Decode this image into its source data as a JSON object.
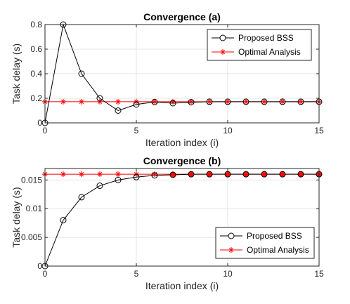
{
  "chart_data": [
    {
      "type": "line",
      "title": "Convergence (a)",
      "xlabel": "Iteration index (i)",
      "ylabel": "Task delay (s)",
      "xlim": [
        0,
        15
      ],
      "ylim": [
        0,
        0.8
      ],
      "xticks": [
        0,
        5,
        10,
        15
      ],
      "yticks": [
        0,
        0.2,
        0.4,
        0.6,
        0.8
      ],
      "xtick_labels": [
        "0",
        "5",
        "10",
        "15"
      ],
      "ytick_labels": [
        "0",
        "0.2",
        "0.4",
        "0.6",
        "0.8"
      ],
      "grid": true,
      "legend_position": "top-right",
      "x": [
        0,
        1,
        2,
        3,
        4,
        5,
        6,
        7,
        8,
        9,
        10,
        11,
        12,
        13,
        14,
        15
      ],
      "series": [
        {
          "name": "Proposed BSS",
          "color": "#000000",
          "marker": "circle",
          "values": [
            0,
            0.8,
            0.4,
            0.2,
            0.1,
            0.15,
            0.17,
            0.16,
            0.168,
            0.172,
            0.172,
            0.172,
            0.172,
            0.172,
            0.172,
            0.172
          ]
        },
        {
          "name": "Optimal Analysis",
          "color": "#ff0000",
          "marker": "asterisk",
          "values": [
            0.172,
            0.172,
            0.172,
            0.172,
            0.172,
            0.172,
            0.172,
            0.172,
            0.172,
            0.172,
            0.172,
            0.172,
            0.172,
            0.172,
            0.172,
            0.172
          ]
        }
      ]
    },
    {
      "type": "line",
      "title": "Convergence (b)",
      "xlabel": "Iteration index (i)",
      "ylabel": "Task delay (s)",
      "xlim": [
        0,
        15
      ],
      "ylim": [
        0,
        0.017
      ],
      "xticks": [
        0,
        5,
        10,
        15
      ],
      "yticks": [
        0,
        0.005,
        0.01,
        0.015
      ],
      "xtick_labels": [
        "0",
        "5",
        "10",
        "15"
      ],
      "ytick_labels": [
        "0",
        "0.005",
        "0.01",
        "0.015"
      ],
      "grid": true,
      "legend_position": "bottom-right",
      "x": [
        0,
        1,
        2,
        3,
        4,
        5,
        6,
        7,
        8,
        9,
        10,
        11,
        12,
        13,
        14,
        15
      ],
      "series": [
        {
          "name": "Proposed BSS",
          "color": "#000000",
          "marker": "circle",
          "values": [
            0,
            0.008,
            0.012,
            0.014,
            0.015,
            0.0155,
            0.0158,
            0.0159,
            0.016,
            0.016,
            0.016,
            0.016,
            0.016,
            0.016,
            0.016,
            0.016
          ]
        },
        {
          "name": "Optimal Analysis",
          "color": "#ff0000",
          "marker": "asterisk",
          "values": [
            0.016,
            0.016,
            0.016,
            0.016,
            0.016,
            0.016,
            0.016,
            0.016,
            0.016,
            0.016,
            0.016,
            0.016,
            0.016,
            0.016,
            0.016,
            0.016
          ]
        }
      ]
    }
  ]
}
